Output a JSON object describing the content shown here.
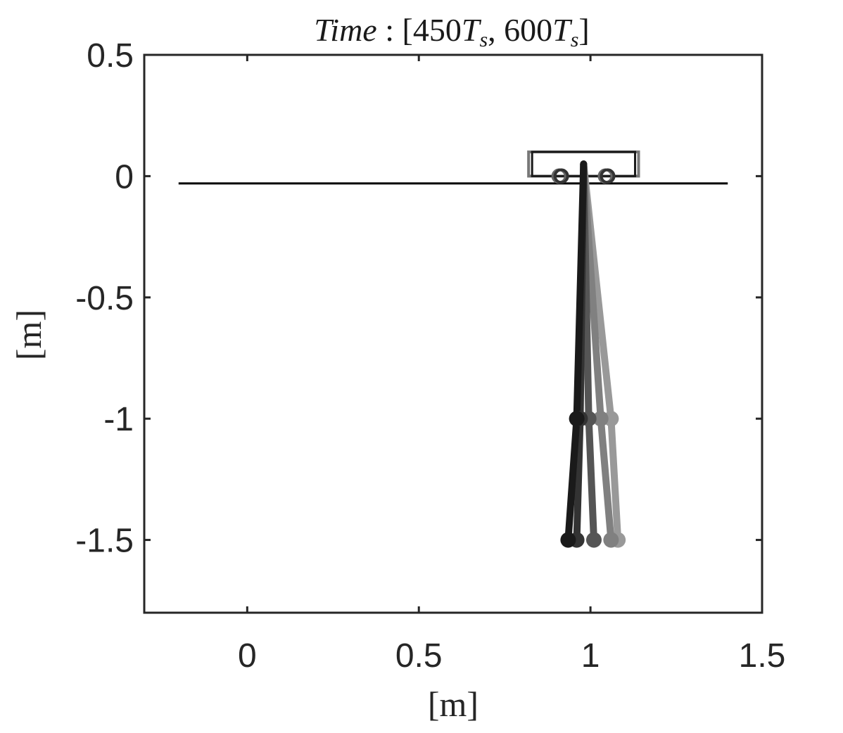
{
  "chart_data": {
    "type": "line",
    "title": "Time : [450T_s, 600T_s]",
    "title_parts": {
      "italic": "Time",
      "colon": " : ",
      "open": "[450",
      "T1": "T",
      "sub1": "s",
      "mid": ", 600",
      "T2": "T",
      "sub2": "s",
      "close": "]"
    },
    "xlabel": "[m]",
    "ylabel": "[m]",
    "xlim": [
      -0.3,
      1.5
    ],
    "ylim": [
      -1.8,
      0.5
    ],
    "xticks": [
      0,
      0.5,
      1,
      1.5
    ],
    "xtick_labels": [
      "0",
      "0.5",
      "1",
      "1.5"
    ],
    "yticks": [
      0.5,
      0,
      -0.5,
      -1,
      -1.5
    ],
    "ytick_labels": [
      "0.5",
      "0",
      "-0.5",
      "-1",
      "-1.5"
    ],
    "grid": false,
    "track": {
      "x": [
        -0.2,
        1.4
      ],
      "y": -0.03,
      "color": "#000000"
    },
    "cart": {
      "x": [
        0.83,
        1.13
      ],
      "y": [
        0,
        0.1
      ],
      "wheels_x": [
        0.915,
        1.05
      ],
      "wheel_y": 0,
      "color": "#1a1a1a"
    },
    "pendulum_series": [
      {
        "pivot": [
          0.98,
          0.05
        ],
        "joint": [
          1.06,
          -1.0
        ],
        "tip": [
          1.08,
          -1.5
        ],
        "color": "#999999"
      },
      {
        "pivot": [
          0.98,
          0.05
        ],
        "joint": [
          1.03,
          -1.0
        ],
        "tip": [
          1.06,
          -1.5
        ],
        "color": "#808080"
      },
      {
        "pivot": [
          0.98,
          0.05
        ],
        "joint": [
          0.995,
          -1.0
        ],
        "tip": [
          1.01,
          -1.5
        ],
        "color": "#555555"
      },
      {
        "pivot": [
          0.98,
          0.05
        ],
        "joint": [
          0.97,
          -1.0
        ],
        "tip": [
          0.96,
          -1.5
        ],
        "color": "#333333"
      },
      {
        "pivot": [
          0.98,
          0.05
        ],
        "joint": [
          0.96,
          -1.0
        ],
        "tip": [
          0.935,
          -1.5
        ],
        "color": "#1a1a1a"
      }
    ]
  }
}
